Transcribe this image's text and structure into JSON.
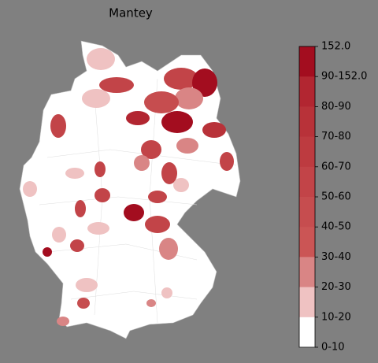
{
  "title": "Mantey",
  "colorbar": {
    "labels": [
      "152.0",
      "90-152.0",
      "80-90",
      "70-80",
      "60-70",
      "50-60",
      "40-50",
      "30-40",
      "20-30",
      "10-20",
      "0-10"
    ],
    "colors": [
      "#a30d1f",
      "#ab1a29",
      "#b22631",
      "#b83239",
      "#bd3b40",
      "#c24448",
      "#c64d4f",
      "#cb5555",
      "#d98585",
      "#efc2c2",
      "#ffffff"
    ]
  }
}
